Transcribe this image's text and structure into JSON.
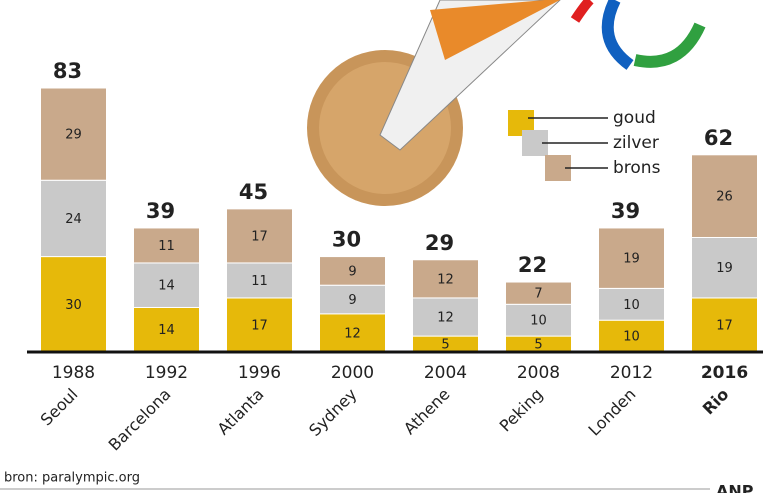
{
  "chart_data": {
    "type": "stacked-bar",
    "categories": [
      "1988",
      "1992",
      "1996",
      "2000",
      "2004",
      "2008",
      "2012",
      "2016"
    ],
    "cities": [
      "Seoul",
      "Barcelona",
      "Atlanta",
      "Sydney",
      "Athene",
      "Peking",
      "Londen",
      "Rio"
    ],
    "series": [
      {
        "name": "goud",
        "color": "#e6b90a",
        "values": [
          30,
          14,
          17,
          12,
          5,
          5,
          10,
          17
        ]
      },
      {
        "name": "zilver",
        "color": "#c9c9c9",
        "values": [
          24,
          14,
          11,
          9,
          12,
          10,
          10,
          19
        ]
      },
      {
        "name": "brons",
        "color": "#c9a98b",
        "values": [
          29,
          11,
          17,
          9,
          12,
          7,
          19,
          26
        ]
      }
    ],
    "totals": [
      83,
      39,
      45,
      30,
      29,
      22,
      39,
      62
    ],
    "source": "bron: paralympic.org",
    "logo": "ANP"
  }
}
